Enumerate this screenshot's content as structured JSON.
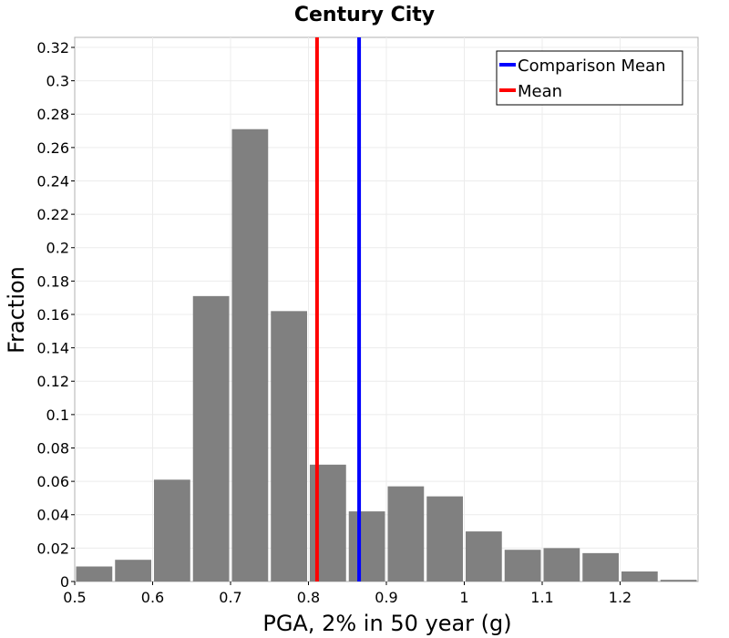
{
  "chart_data": {
    "type": "bar",
    "title": "Century City",
    "xlabel": "PGA, 2% in 50 year (g)",
    "ylabel": "Fraction",
    "xlim": [
      0.5,
      1.3
    ],
    "ylim": [
      0,
      0.326
    ],
    "bin_width": 0.05,
    "bins": [
      {
        "start": 0.5,
        "value": 0.009
      },
      {
        "start": 0.55,
        "value": 0.013
      },
      {
        "start": 0.6,
        "value": 0.061
      },
      {
        "start": 0.65,
        "value": 0.171
      },
      {
        "start": 0.7,
        "value": 0.271
      },
      {
        "start": 0.75,
        "value": 0.162
      },
      {
        "start": 0.8,
        "value": 0.07
      },
      {
        "start": 0.85,
        "value": 0.042
      },
      {
        "start": 0.9,
        "value": 0.057
      },
      {
        "start": 0.95,
        "value": 0.051
      },
      {
        "start": 1.0,
        "value": 0.03
      },
      {
        "start": 1.05,
        "value": 0.019
      },
      {
        "start": 1.1,
        "value": 0.02
      },
      {
        "start": 1.15,
        "value": 0.017
      },
      {
        "start": 1.2,
        "value": 0.006
      },
      {
        "start": 1.25,
        "value": 0.001
      }
    ],
    "x_ticks": [
      "0.5",
      "0.6",
      "0.7",
      "0.8",
      "0.9",
      "1",
      "1.1",
      "1.2"
    ],
    "y_ticks": [
      "0",
      "0.02",
      "0.04",
      "0.06",
      "0.08",
      "0.1",
      "0.12",
      "0.14",
      "0.16",
      "0.18",
      "0.2",
      "0.22",
      "0.24",
      "0.26",
      "0.28",
      "0.3",
      "0.32"
    ],
    "vertical_lines": [
      {
        "name": "Comparison Mean",
        "x": 0.865,
        "color": "#0000ff"
      },
      {
        "name": "Mean",
        "x": 0.811,
        "color": "#ff0000"
      }
    ],
    "bar_color": "#808080",
    "grid": true,
    "legend_position": "top-right"
  }
}
